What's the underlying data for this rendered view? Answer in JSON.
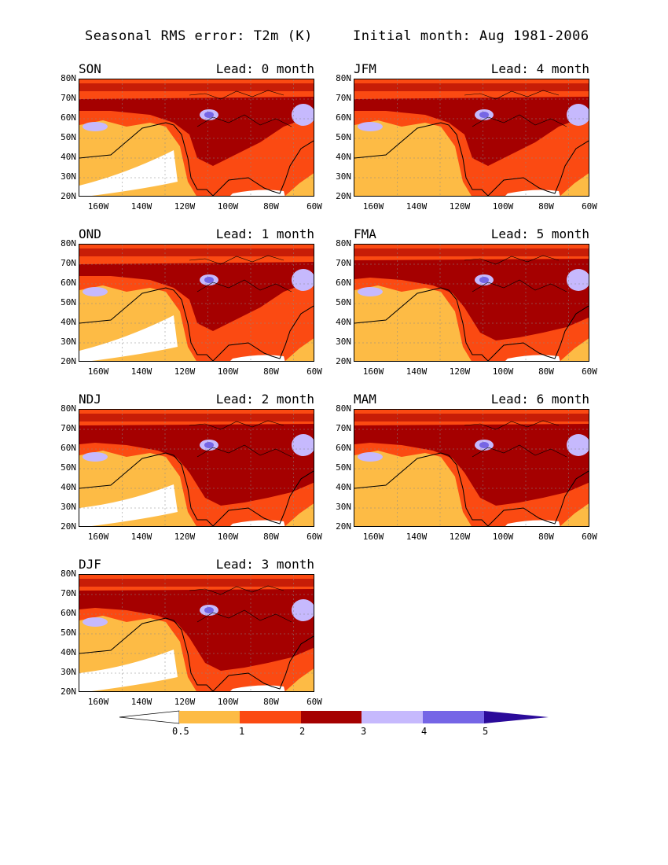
{
  "title": {
    "left": "Seasonal RMS error: T2m (K)",
    "right": "Initial month: Aug 1981-2006"
  },
  "axes": {
    "y_ticks": [
      "80N",
      "70N",
      "60N",
      "50N",
      "40N",
      "30N",
      "20N"
    ],
    "x_ticks": [
      "160W",
      "140W",
      "120W",
      "100W",
      "80W",
      "60W"
    ]
  },
  "panels": [
    {
      "season": "SON",
      "lead": "Lead: 0 month"
    },
    {
      "season": "JFM",
      "lead": "Lead: 4 month"
    },
    {
      "season": "OND",
      "lead": "Lead: 1 month"
    },
    {
      "season": "FMA",
      "lead": "Lead: 5 month"
    },
    {
      "season": "NDJ",
      "lead": "Lead: 2 month"
    },
    {
      "season": "MAM",
      "lead": "Lead: 6 month"
    },
    {
      "season": "DJF",
      "lead": "Lead: 3 month"
    }
  ],
  "colorbar": {
    "labels": [
      "0.5",
      "1",
      "2",
      "3",
      "4",
      "5"
    ],
    "colors": [
      "#ffffff",
      "#fdbb45",
      "#fb4a12",
      "#a50000",
      "#c6b9fd",
      "#7565e6",
      "#2b0b9a"
    ]
  }
}
